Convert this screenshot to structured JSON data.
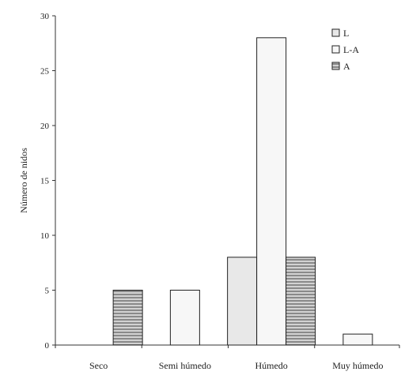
{
  "chart_data": {
    "type": "bar",
    "title": "",
    "xlabel": "",
    "ylabel": "Número de nidos",
    "categories": [
      "Seco",
      "Semi húmedo",
      "Húmedo",
      "Muy húmedo"
    ],
    "ylim": [
      0,
      30
    ],
    "yticks": [
      0,
      5,
      10,
      15,
      20,
      25,
      30
    ],
    "series": [
      {
        "name": "L",
        "values": [
          0,
          0,
          8,
          0
        ],
        "fill": "#e8e8e8",
        "pattern": "solid"
      },
      {
        "name": "L-A",
        "values": [
          0,
          5,
          28,
          1
        ],
        "fill": "#f7f7f7",
        "pattern": "solid"
      },
      {
        "name": "A",
        "values": [
          5,
          0,
          8,
          0
        ],
        "fill": "#b4b4b4",
        "pattern": "horizontal-lines"
      }
    ],
    "legend_position": "top-right",
    "grid": false
  }
}
